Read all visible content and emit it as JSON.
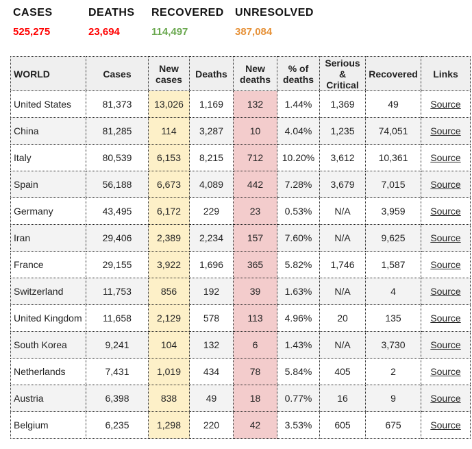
{
  "summary": [
    {
      "label": "CASES",
      "value": "525,275",
      "color": "#ff0000"
    },
    {
      "label": "DEATHS",
      "value": "23,694",
      "color": "#ff0000"
    },
    {
      "label": "RECOVERED",
      "value": "114,497",
      "color": "#6aa84f"
    },
    {
      "label": "UNRESOLVED",
      "value": "387,084",
      "color": "#e69138"
    }
  ],
  "headers": [
    "WORLD",
    "Cases",
    "New cases",
    "Deaths",
    "New deaths",
    "% of deaths",
    "Serious & Critical",
    "Recovered",
    "Links"
  ],
  "rows": [
    [
      "United States",
      "81,373",
      "13,026",
      "1,169",
      "132",
      "1.44%",
      "1,369",
      "49",
      "Source"
    ],
    [
      "China",
      "81,285",
      "114",
      "3,287",
      "10",
      "4.04%",
      "1,235",
      "74,051",
      "Source"
    ],
    [
      "Italy",
      "80,539",
      "6,153",
      "8,215",
      "712",
      "10.20%",
      "3,612",
      "10,361",
      "Source"
    ],
    [
      "Spain",
      "56,188",
      "6,673",
      "4,089",
      "442",
      "7.28%",
      "3,679",
      "7,015",
      "Source"
    ],
    [
      "Germany",
      "43,495",
      "6,172",
      "229",
      "23",
      "0.53%",
      "N/A",
      "3,959",
      "Source"
    ],
    [
      "Iran",
      "29,406",
      "2,389",
      "2,234",
      "157",
      "7.60%",
      "N/A",
      "9,625",
      "Source"
    ],
    [
      "France",
      "29,155",
      "3,922",
      "1,696",
      "365",
      "5.82%",
      "1,746",
      "1,587",
      "Source"
    ],
    [
      "Switzerland",
      "11,753",
      "856",
      "192",
      "39",
      "1.63%",
      "N/A",
      "4",
      "Source"
    ],
    [
      "United Kingdom",
      "11,658",
      "2,129",
      "578",
      "113",
      "4.96%",
      "20",
      "135",
      "Source"
    ],
    [
      "South Korea",
      "9,241",
      "104",
      "132",
      "6",
      "1.43%",
      "N/A",
      "3,730",
      "Source"
    ],
    [
      "Netherlands",
      "7,431",
      "1,019",
      "434",
      "78",
      "5.84%",
      "405",
      "2",
      "Source"
    ],
    [
      "Austria",
      "6,398",
      "838",
      "49",
      "18",
      "0.77%",
      "16",
      "9",
      "Source"
    ],
    [
      "Belgium",
      "6,235",
      "1,298",
      "220",
      "42",
      "3.53%",
      "605",
      "675",
      "Source"
    ]
  ]
}
